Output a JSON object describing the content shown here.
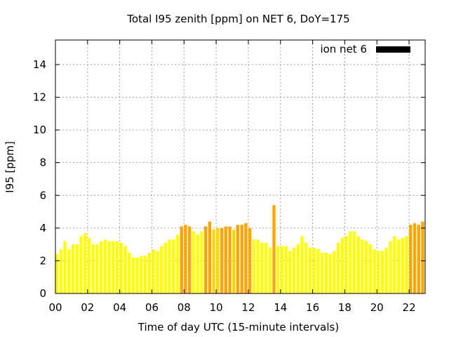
{
  "chart_data": {
    "type": "bar",
    "title": "Total I95 zenith [ppm] on NET 6, DoY=175",
    "xlabel": "Time of day UTC (15-minute intervals)",
    "ylabel": "I95 [ppm]",
    "xlim": [
      0,
      23
    ],
    "ylim": [
      0,
      15.5
    ],
    "x_ticks": [
      0,
      2,
      4,
      6,
      8,
      10,
      12,
      14,
      16,
      18,
      20,
      22
    ],
    "x_tick_labels": [
      "00",
      "02",
      "04",
      "06",
      "08",
      "10",
      "12",
      "14",
      "16",
      "18",
      "20",
      "22"
    ],
    "y_ticks": [
      0,
      2,
      4,
      6,
      8,
      10,
      12,
      14
    ],
    "y_tick_labels": [
      "0",
      "2",
      "4",
      "6",
      "8",
      "10",
      "12",
      "14"
    ],
    "grid": true,
    "legend": {
      "position": "top-right",
      "entries": [
        {
          "label": "ion net 6",
          "color": "#000000"
        }
      ]
    },
    "colors": {
      "low": "#ffff00",
      "mid": "#ffd700",
      "high": "#ffa500",
      "frame": "#000000",
      "grid": "#a0a0a0"
    },
    "series": [
      {
        "bar_width_hours": 0.19,
        "values": [
          2.4,
          2.7,
          3.2,
          2.7,
          3.0,
          3.0,
          3.5,
          3.7,
          3.4,
          3.0,
          3.0,
          3.2,
          3.3,
          3.2,
          3.2,
          3.2,
          3.1,
          2.9,
          2.5,
          2.2,
          2.2,
          2.3,
          2.3,
          2.5,
          2.7,
          2.6,
          2.9,
          3.1,
          3.3,
          3.3,
          3.6,
          4.1,
          4.2,
          4.1,
          3.8,
          3.6,
          3.8,
          4.1,
          4.4,
          3.9,
          4.0,
          4.0,
          4.1,
          4.1,
          3.9,
          4.2,
          4.2,
          4.3,
          4.0,
          3.3,
          3.3,
          3.1,
          3.1,
          2.8,
          5.4,
          2.9,
          2.9,
          2.9,
          2.6,
          2.8,
          3.0,
          3.5,
          3.1,
          2.8,
          2.8,
          2.7,
          2.5,
          2.5,
          2.4,
          2.6,
          3.1,
          3.4,
          3.5,
          3.8,
          3.8,
          3.5,
          3.3,
          3.2,
          3.0,
          2.7,
          2.6,
          2.6,
          2.8,
          3.2,
          3.5,
          3.3,
          3.4,
          3.5,
          4.2,
          4.3,
          4.2,
          4.4
        ],
        "colors": [
          "#ffff00",
          "#ffff00",
          "#ffff00",
          "#ffff00",
          "#ffff00",
          "#ffff00",
          "#ffff00",
          "#ffff00",
          "#ffff00",
          "#ffff00",
          "#ffff00",
          "#ffff00",
          "#ffff00",
          "#ffff00",
          "#ffff00",
          "#ffff00",
          "#ffff00",
          "#ffff00",
          "#ffff00",
          "#ffff00",
          "#ffff00",
          "#ffff00",
          "#ffff00",
          "#ffff00",
          "#ffff00",
          "#ffff00",
          "#ffff00",
          "#ffff00",
          "#ffff00",
          "#ffff00",
          "#ffff00",
          "#ffa500",
          "#ffa500",
          "#ffa500",
          "#ffff00",
          "#ffff00",
          "#ffff00",
          "#ffa500",
          "#ffa500",
          "#ffd700",
          "#ffd700",
          "#ffa500",
          "#ffa500",
          "#ffa500",
          "#ffd700",
          "#ffa500",
          "#ffa500",
          "#ffa500",
          "#ffa500",
          "#ffff00",
          "#ffff00",
          "#ffff00",
          "#ffff00",
          "#ffff00",
          "#ffa500",
          "#ffff00",
          "#ffff00",
          "#ffff00",
          "#ffff00",
          "#ffff00",
          "#ffff00",
          "#ffff00",
          "#ffff00",
          "#ffff00",
          "#ffff00",
          "#ffff00",
          "#ffff00",
          "#ffff00",
          "#ffff00",
          "#ffff00",
          "#ffff00",
          "#ffff00",
          "#ffff00",
          "#ffff00",
          "#ffff00",
          "#ffff00",
          "#ffff00",
          "#ffff00",
          "#ffff00",
          "#ffff00",
          "#ffff00",
          "#ffff00",
          "#ffff00",
          "#ffff00",
          "#ffff00",
          "#ffff00",
          "#ffff00",
          "#ffff00",
          "#ffa500",
          "#ffa500",
          "#ffa500",
          "#ffa500"
        ]
      }
    ]
  }
}
